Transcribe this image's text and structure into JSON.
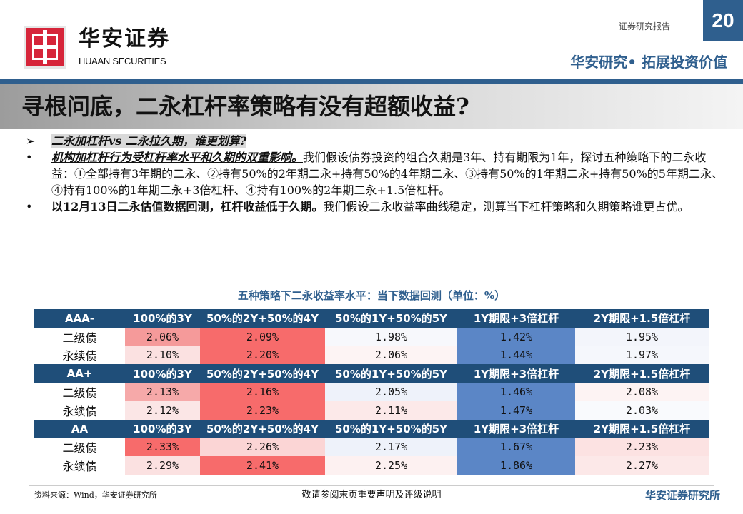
{
  "header": {
    "brand_cn": "华安证券",
    "brand_en": "HUAAN SECURITIES",
    "report_type": "证券研究报告",
    "page_number": "20",
    "slogan": "华安研究• 拓展投资价值"
  },
  "title": "寻根问底，二永杠杆率策略有没有超额收益?",
  "bullets": [
    {
      "marker": "➢",
      "highlight": "二永加杠杆vs 二永拉久期，谁更划算?"
    },
    {
      "marker": "•",
      "lead": "机构加杠杆行为受杠杆率水平和久期的双重影响。",
      "text": "我们假设债券投资的组合久期是3年、持有期限为1年，探讨五种策略下的二永收益：①全部持有3年期的二永、②持有50%的2年期二永+持有50%的4年期二永、③持有50%的1年期二永+持有50%的5年期二永、④持有100%的1年期二永+3倍杠杆、④持有100%的2年期二永+1.5倍杠杆。"
    },
    {
      "marker": "•",
      "lead": "以12月13日二永估值数据回测，杠杆收益低于久期。",
      "text": "我们假设二永收益率曲线稳定，测算当下杠杆策略和久期策略谁更占优。"
    }
  ],
  "table": {
    "caption": "五种策略下二永收益率水平：当下数据回测（单位：%）",
    "columns": [
      "100%的3Y",
      "50%的2Y+50%的4Y",
      "50%的1Y+50%的5Y",
      "1Y期限+3倍杠杆",
      "2Y期限+1.5倍杠杆"
    ],
    "sections": [
      {
        "rating": "AAA-",
        "rows": [
          {
            "label": "二级债",
            "values": [
              "2.06%",
              "2.09%",
              "1.98%",
              "1.42%",
              "1.95%"
            ],
            "colors": [
              "#f59a9a",
              "#f76b6b",
              "#f7f8fc",
              "#5b86c6",
              "#f3f5fb"
            ]
          },
          {
            "label": "永续债",
            "values": [
              "2.10%",
              "2.20%",
              "2.06%",
              "1.44%",
              "1.97%"
            ],
            "colors": [
              "#fbe1e1",
              "#f76b6b",
              "#fdf4f4",
              "#5b86c6",
              "#f5f7fc"
            ]
          }
        ]
      },
      {
        "rating": "AA+",
        "rows": [
          {
            "label": "二级债",
            "values": [
              "2.13%",
              "2.16%",
              "2.05%",
              "1.46%",
              "2.08%"
            ],
            "colors": [
              "#f6a9a9",
              "#f76b6b",
              "#eef2fa",
              "#5b86c6",
              "#fdf3f3"
            ]
          },
          {
            "label": "永续债",
            "values": [
              "2.12%",
              "2.23%",
              "2.11%",
              "1.47%",
              "2.03%"
            ],
            "colors": [
              "#fbe6e6",
              "#f76b6b",
              "#fce9e9",
              "#5b86c6",
              "#f9fafd"
            ]
          }
        ]
      },
      {
        "rating": "AA",
        "rows": [
          {
            "label": "二级债",
            "values": [
              "2.33%",
              "2.26%",
              "2.17%",
              "1.67%",
              "2.23%"
            ],
            "colors": [
              "#f76b6b",
              "#fbd5d5",
              "#eef2fa",
              "#5b86c6",
              "#fce2e2"
            ]
          },
          {
            "label": "永续债",
            "values": [
              "2.29%",
              "2.41%",
              "2.25%",
              "1.86%",
              "2.27%"
            ],
            "colors": [
              "#fbe1e1",
              "#f76b6b",
              "#fdf1f1",
              "#5b86c6",
              "#fce8e8"
            ]
          }
        ]
      }
    ]
  },
  "footer": {
    "source": "资料来源：Wind，华安证券研究所",
    "disclaimer": "敬请参阅末页重要声明及评级说明",
    "org": "华安证券研究所"
  }
}
